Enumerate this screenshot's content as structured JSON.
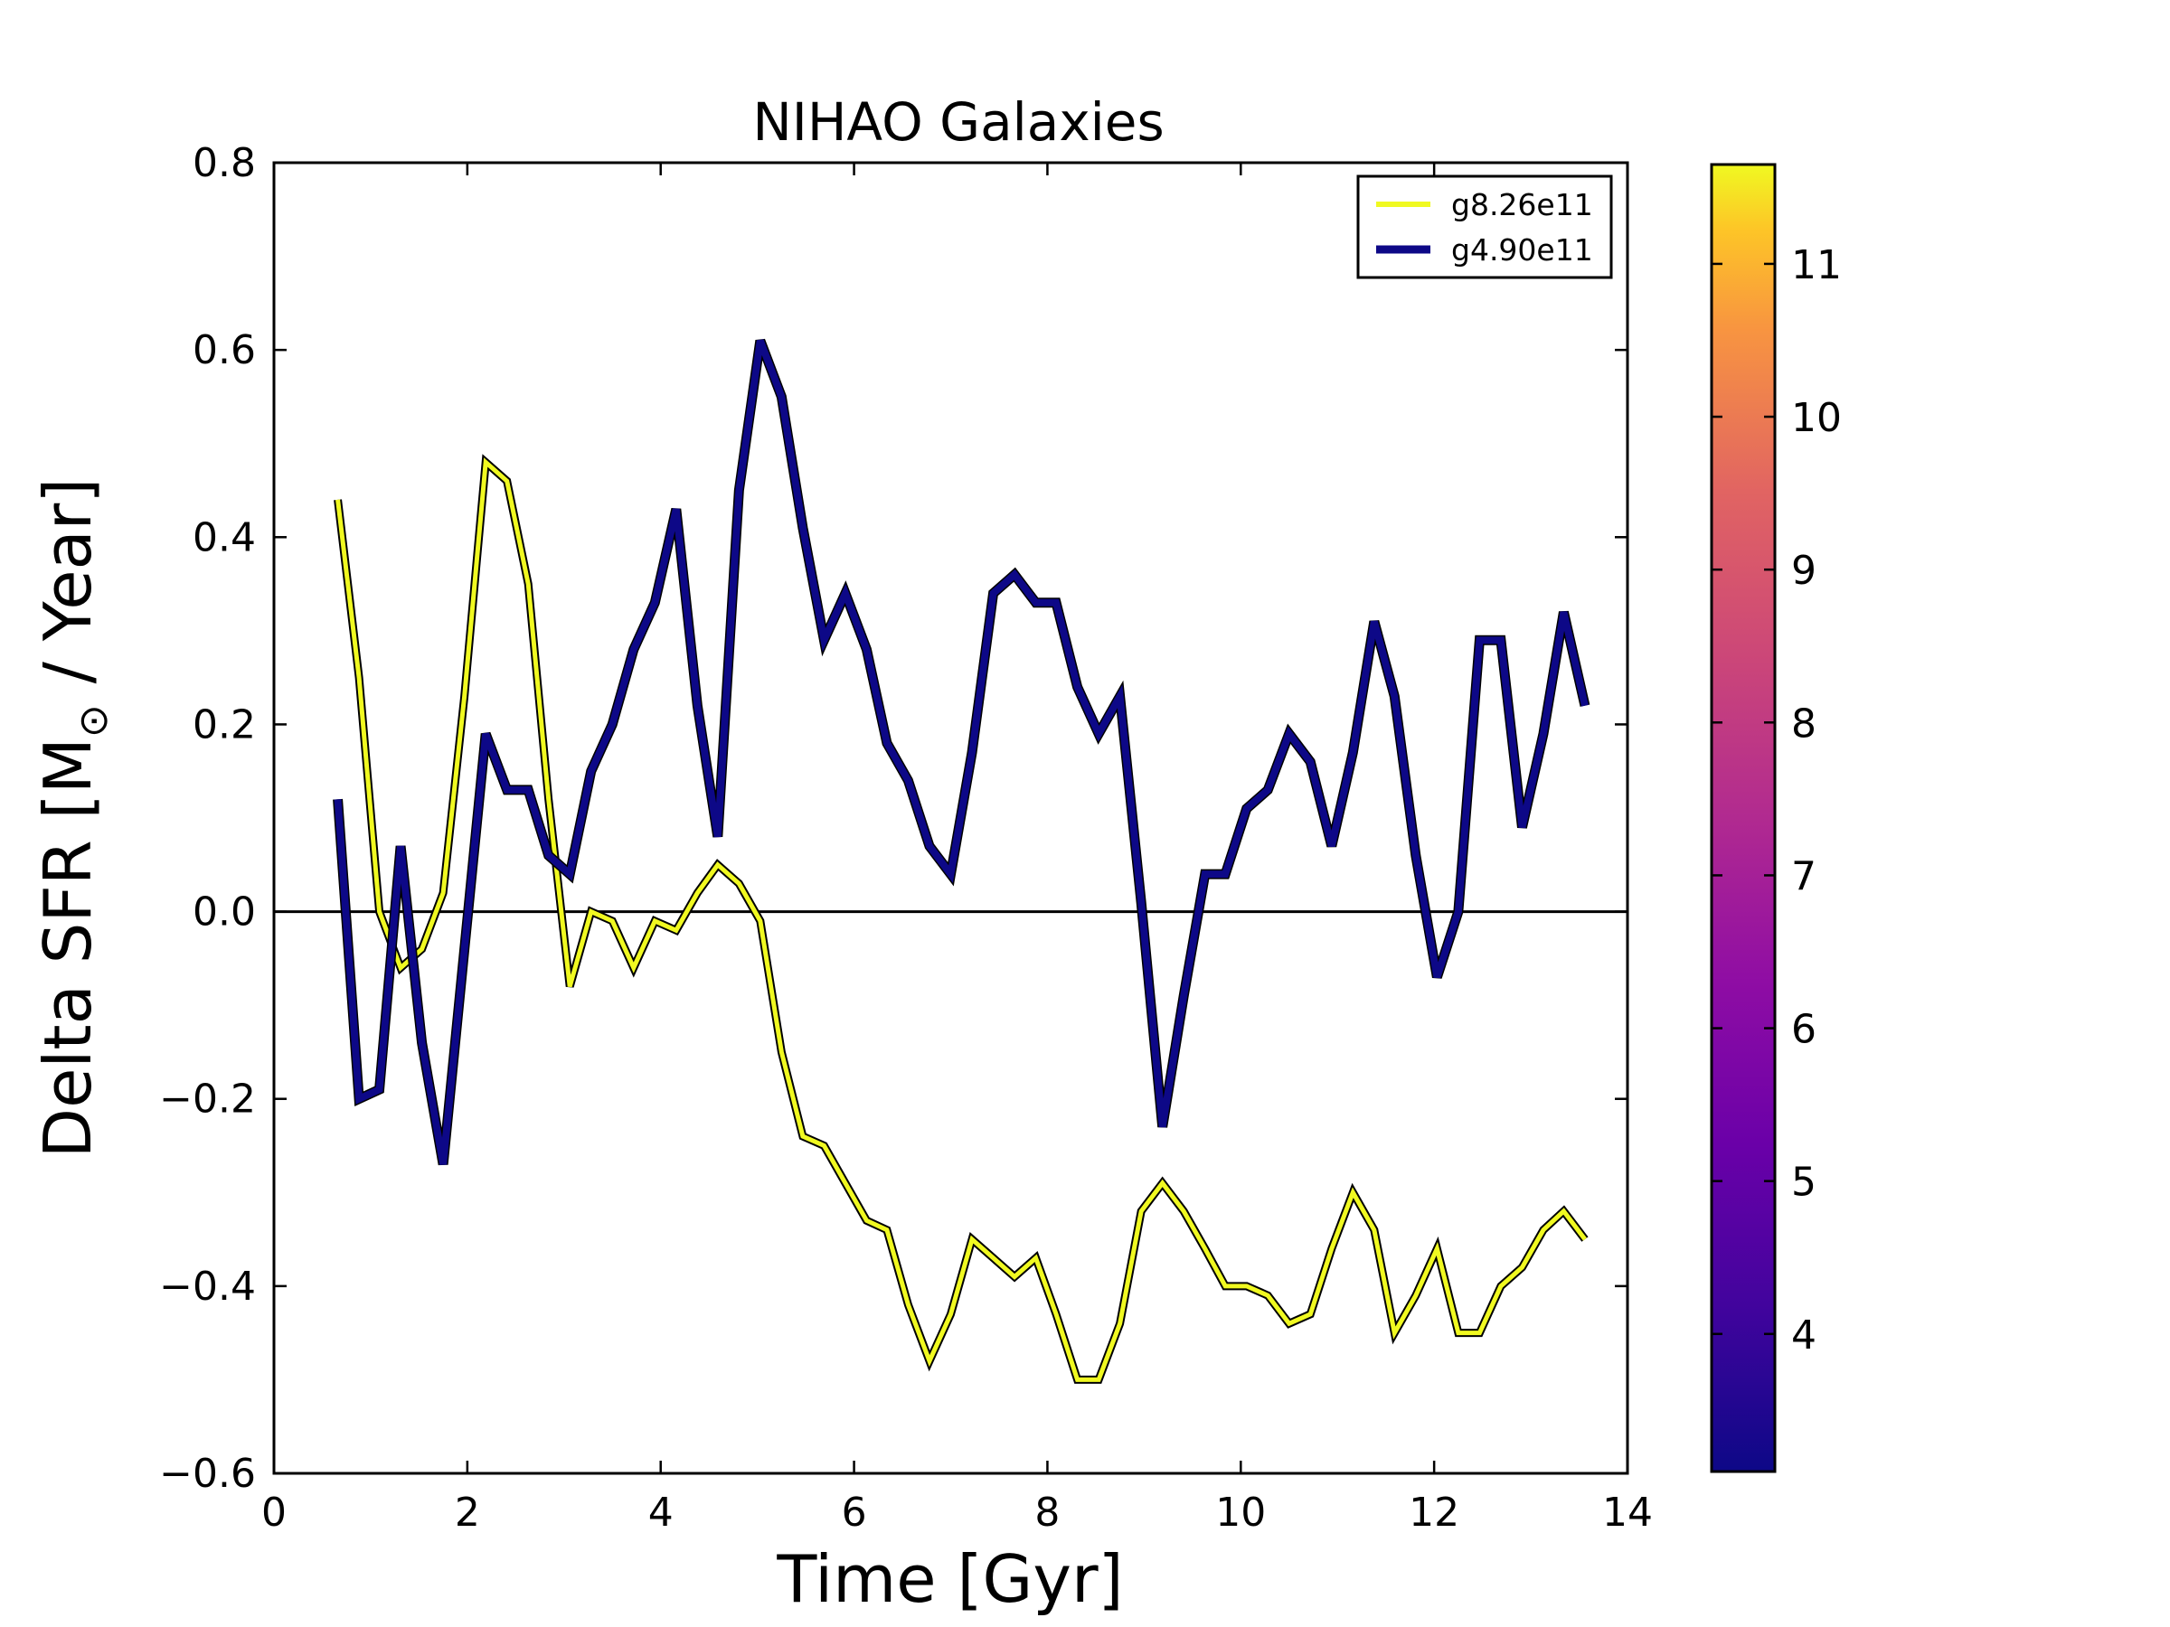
{
  "chart_data": {
    "type": "line",
    "title": "NIHAO Galaxies",
    "xlabel": "Time [Gyr]",
    "ylabel_parts": [
      "Delta SFR [M",
      "⊙",
      " / Year]"
    ],
    "xlim": [
      0,
      14
    ],
    "ylim": [
      -0.6,
      0.8
    ],
    "xticks": [
      0,
      2,
      4,
      6,
      8,
      10,
      12,
      14
    ],
    "xtick_labels": [
      "0",
      "2",
      "4",
      "6",
      "8",
      "10",
      "12",
      "14"
    ],
    "yticks": [
      -0.6,
      -0.4,
      -0.2,
      0.0,
      0.2,
      0.4,
      0.6,
      0.8
    ],
    "ytick_labels": [
      "−0.6",
      "−0.4",
      "−0.2",
      "0.0",
      "0.2",
      "0.4",
      "0.6",
      "0.8"
    ],
    "hline": 0.0,
    "grid": false,
    "legend_position": "top-right",
    "series": [
      {
        "name": "g8.26e11",
        "color": "#f0f921",
        "x": [
          0.66,
          0.88,
          1.09,
          1.31,
          1.53,
          1.75,
          1.97,
          2.19,
          2.41,
          2.63,
          2.84,
          3.06,
          3.28,
          3.5,
          3.72,
          3.94,
          4.16,
          4.38,
          4.59,
          4.81,
          5.03,
          5.25,
          5.47,
          5.69,
          5.91,
          6.13,
          6.34,
          6.56,
          6.78,
          7.0,
          7.22,
          7.44,
          7.66,
          7.88,
          8.09,
          8.31,
          8.53,
          8.75,
          8.97,
          9.19,
          9.41,
          9.63,
          9.84,
          10.06,
          10.28,
          10.5,
          10.72,
          10.94,
          11.16,
          11.38,
          11.59,
          11.81,
          12.03,
          12.25,
          12.47,
          12.69,
          12.91,
          13.13,
          13.34,
          13.56
        ],
        "y": [
          0.44,
          0.25,
          0.0,
          -0.06,
          -0.04,
          0.02,
          0.23,
          0.48,
          0.46,
          0.35,
          0.12,
          -0.08,
          0.0,
          -0.01,
          -0.06,
          -0.01,
          -0.02,
          0.02,
          0.05,
          0.03,
          -0.01,
          -0.15,
          -0.24,
          -0.25,
          -0.29,
          -0.33,
          -0.34,
          -0.42,
          -0.48,
          -0.43,
          -0.35,
          -0.37,
          -0.39,
          -0.37,
          -0.43,
          -0.5,
          -0.5,
          -0.44,
          -0.32,
          -0.29,
          -0.32,
          -0.36,
          -0.4,
          -0.4,
          -0.41,
          -0.44,
          -0.43,
          -0.36,
          -0.3,
          -0.34,
          -0.45,
          -0.41,
          -0.36,
          -0.45,
          -0.45,
          -0.4,
          -0.38,
          -0.34,
          -0.32,
          -0.35
        ]
      },
      {
        "name": "g4.90e11",
        "color": "#0d0887",
        "x": [
          0.66,
          0.88,
          1.09,
          1.31,
          1.53,
          1.75,
          1.97,
          2.19,
          2.41,
          2.63,
          2.84,
          3.06,
          3.28,
          3.5,
          3.72,
          3.94,
          4.16,
          4.38,
          4.59,
          4.81,
          5.03,
          5.25,
          5.47,
          5.69,
          5.91,
          6.13,
          6.34,
          6.56,
          6.78,
          7.0,
          7.22,
          7.44,
          7.66,
          7.88,
          8.09,
          8.31,
          8.53,
          8.75,
          8.97,
          9.19,
          9.41,
          9.63,
          9.84,
          10.06,
          10.28,
          10.5,
          10.72,
          10.94,
          11.16,
          11.38,
          11.59,
          11.81,
          12.03,
          12.25,
          12.47,
          12.69,
          12.91,
          13.13,
          13.34,
          13.56
        ],
        "y": [
          0.12,
          -0.2,
          -0.19,
          0.07,
          -0.14,
          -0.27,
          -0.04,
          0.19,
          0.13,
          0.13,
          0.06,
          0.04,
          0.15,
          0.2,
          0.28,
          0.33,
          0.43,
          0.22,
          0.08,
          0.45,
          0.61,
          0.55,
          0.41,
          0.29,
          0.34,
          0.28,
          0.18,
          0.14,
          0.07,
          0.04,
          0.17,
          0.34,
          0.36,
          0.33,
          0.33,
          0.24,
          0.19,
          0.23,
          0.01,
          -0.23,
          -0.09,
          0.04,
          0.04,
          0.11,
          0.13,
          0.19,
          0.16,
          0.07,
          0.17,
          0.31,
          0.23,
          0.06,
          -0.07,
          0.0,
          0.29,
          0.29,
          0.09,
          0.19,
          0.32,
          0.22
        ]
      }
    ],
    "colorbar": {
      "colormap": "plasma",
      "range": [
        3.1,
        11.65
      ],
      "ticks": [
        4,
        5,
        6,
        7,
        8,
        9,
        10,
        11
      ],
      "tick_labels": [
        "4",
        "5",
        "6",
        "7",
        "8",
        "9",
        "10",
        "11"
      ]
    }
  }
}
